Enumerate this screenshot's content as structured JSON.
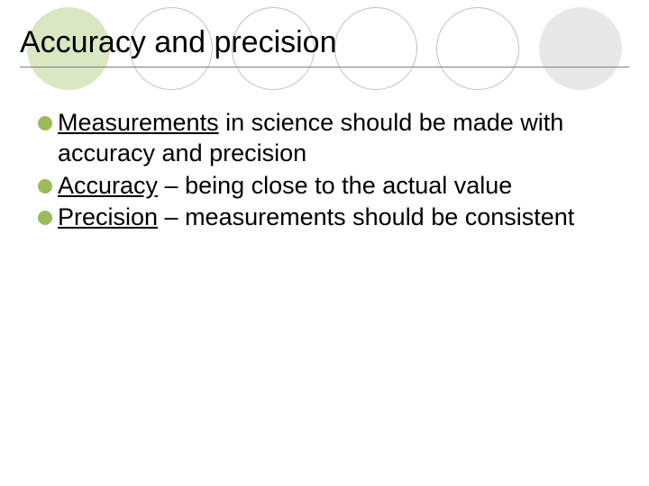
{
  "decor": {
    "circles": [
      {
        "fill": "#d9e7c3",
        "border": "none"
      },
      {
        "fill": "#ffffff",
        "border": "1px solid #bfbfbf"
      },
      {
        "fill": "#ffffff",
        "border": "1px solid #bfbfbf"
      },
      {
        "fill": "#ffffff",
        "border": "1px solid #bfbfbf"
      },
      {
        "fill": "#ffffff",
        "border": "1px solid #bfbfbf"
      },
      {
        "fill": "#e8e8e8",
        "border": "none"
      }
    ]
  },
  "title": "Accuracy and precision",
  "bullets": [
    {
      "underlined": "Measurements",
      "rest": " in science should be made with accuracy and precision"
    },
    {
      "underlined": "Accuracy",
      "rest": " – being close to the actual value"
    },
    {
      "underlined": "Precision",
      "rest": " – measurements should be consistent"
    }
  ],
  "styling": {
    "bullet_color": "#9bbb59",
    "title_fontsize": 34,
    "body_fontsize": 27,
    "underline_color": "#808080",
    "background": "#ffffff"
  }
}
